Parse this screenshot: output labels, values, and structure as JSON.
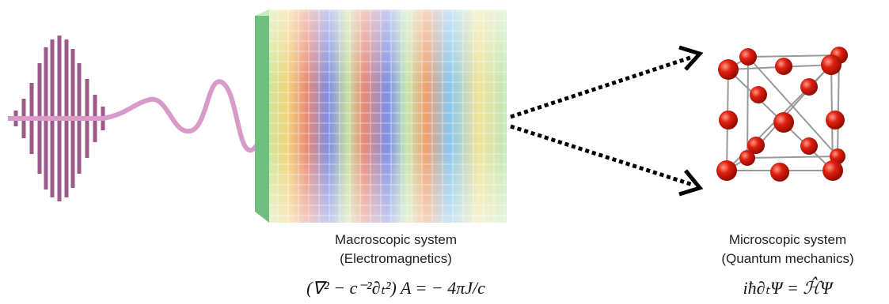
{
  "left": {
    "title": "Macroscopic system",
    "subtitle": "(Electromagnetics)",
    "equation": "(∇² − c⁻²∂ₜ²) A = − 4πJ/c"
  },
  "right": {
    "title": "Microscopic system",
    "subtitle": "(Quantum mechanics)",
    "equation": "iħ∂ₜΨ = ℋ̂Ψ"
  }
}
